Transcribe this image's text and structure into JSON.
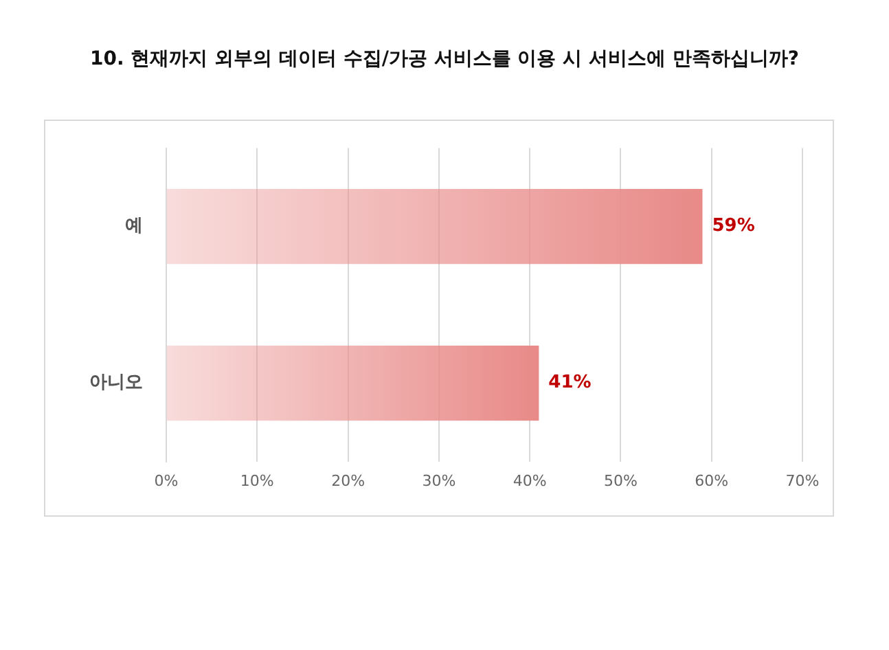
{
  "chart_data": {
    "type": "bar",
    "orientation": "horizontal",
    "title": "10. 현재까지 외부의 데이터 수집/가공 서비스를 이용 시 서비스에 만족하십니까?",
    "categories": [
      "예",
      "아니오"
    ],
    "values": [
      59,
      41
    ],
    "color": "#e88a88",
    "value_labels": [
      "59%",
      "41%"
    ],
    "xlim": [
      0,
      70
    ],
    "xticks": [
      {
        "value": 0,
        "label": "0%"
      },
      {
        "value": 10,
        "label": "10%"
      },
      {
        "value": 20,
        "label": "20%"
      },
      {
        "value": 30,
        "label": "30%"
      },
      {
        "value": 40,
        "label": "40%"
      },
      {
        "value": 50,
        "label": "50%"
      },
      {
        "value": 60,
        "label": "60%"
      },
      {
        "value": 70,
        "label": "70%"
      }
    ],
    "grid": "x",
    "legend": false
  }
}
